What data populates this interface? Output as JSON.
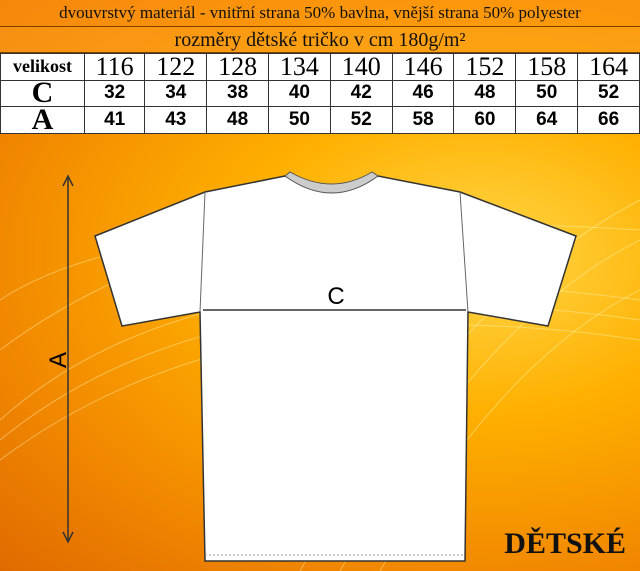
{
  "header": {
    "material": "dvouvrstvý materiál - vnitřní strana 50% bavlna, vnější strana 50% polyester",
    "title": "rozměry dětské tričko v cm    180g/m²"
  },
  "table": {
    "size_label": "velikost",
    "sizes": [
      "116",
      "122",
      "128",
      "134",
      "140",
      "146",
      "152",
      "158",
      "164"
    ],
    "rows": [
      {
        "label": "C",
        "values": [
          "32",
          "34",
          "38",
          "40",
          "42",
          "46",
          "48",
          "50",
          "52"
        ]
      },
      {
        "label": "A",
        "values": [
          "41",
          "43",
          "48",
          "50",
          "52",
          "58",
          "60",
          "64",
          "66"
        ]
      }
    ]
  },
  "diagram": {
    "width_label": "C",
    "length_label": "A"
  },
  "category_label": "DĚTSKÉ",
  "colors": {
    "background": "#f59a00",
    "shirt": "#ffffff"
  }
}
